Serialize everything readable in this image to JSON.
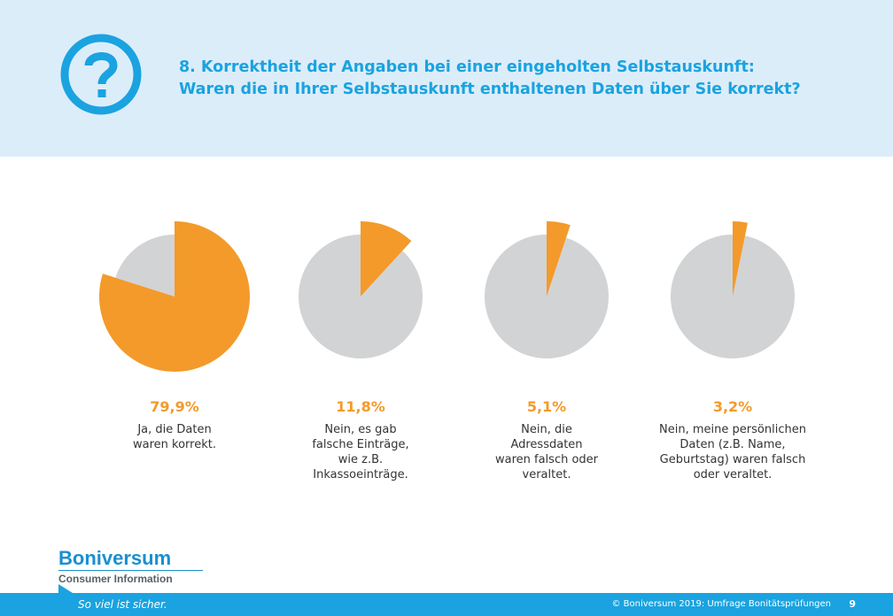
{
  "header": {
    "title": "8. Korrektheit der Angaben bei einer eingeholten Selbstauskunft:",
    "subtitle": "Waren die in Ihrer Selbstauskunft enthaltenen Daten über Sie korrekt?",
    "icon": "question-mark-icon"
  },
  "colors": {
    "accent": "#f39a2b",
    "remainder": "#d2d3d5",
    "brand_blue": "#1aa3e0",
    "header_bg": "#dcedfa"
  },
  "chart_data": {
    "type": "pie",
    "title": "8. Korrektheit der Angaben bei einer eingeholten Selbstauskunft:",
    "charts": [
      {
        "value": 79.9,
        "value_label": "79,9%",
        "description": [
          "Ja, die Daten",
          "waren korrekt."
        ]
      },
      {
        "value": 11.8,
        "value_label": "11,8%",
        "description": [
          "Nein, es gab",
          "falsche Einträge,",
          "wie z.B.",
          "Inkassoeinträge."
        ]
      },
      {
        "value": 5.1,
        "value_label": "5,1%",
        "description": [
          "Nein, die",
          "Adressdaten",
          "waren falsch oder",
          "veraltet."
        ]
      },
      {
        "value": 3.2,
        "value_label": "3,2%",
        "description": [
          "Nein, meine persönlichen",
          "Daten (z.B. Name,",
          "Geburtstag) waren falsch",
          "oder veraltet."
        ]
      }
    ]
  },
  "brand": {
    "name": "Boniversum",
    "tagline": "Consumer Information"
  },
  "footer": {
    "slogan": "So viel ist sicher.",
    "copyright": "© Boniversum 2019: Umfrage Bonitätsprüfungen",
    "page_number": "9"
  }
}
